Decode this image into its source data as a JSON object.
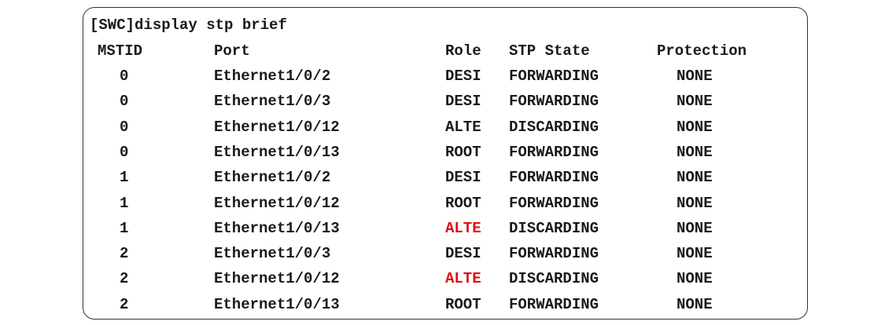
{
  "command": "[SWC]display stp brief",
  "headers": {
    "mstid": "MSTID",
    "port": "Port",
    "role": "Role",
    "state": "STP State",
    "protection": "Protection"
  },
  "colors": {
    "highlight": "#e01010",
    "text": "#1a1a1a"
  },
  "rows": [
    {
      "mstid": "0",
      "port": "Ethernet1/0/2",
      "role": "DESI",
      "state": "FORWARDING",
      "protection": "NONE",
      "highlight": false
    },
    {
      "mstid": "0",
      "port": "Ethernet1/0/3",
      "role": "DESI",
      "state": "FORWARDING",
      "protection": "NONE",
      "highlight": false
    },
    {
      "mstid": "0",
      "port": "Ethernet1/0/12",
      "role": "ALTE",
      "state": "DISCARDING",
      "protection": "NONE",
      "highlight": false
    },
    {
      "mstid": "0",
      "port": "Ethernet1/0/13",
      "role": "ROOT",
      "state": "FORWARDING",
      "protection": "NONE",
      "highlight": false
    },
    {
      "mstid": "1",
      "port": "Ethernet1/0/2",
      "role": "DESI",
      "state": "FORWARDING",
      "protection": "NONE",
      "highlight": false
    },
    {
      "mstid": "1",
      "port": "Ethernet1/0/12",
      "role": "ROOT",
      "state": "FORWARDING",
      "protection": "NONE",
      "highlight": false
    },
    {
      "mstid": "1",
      "port": "Ethernet1/0/13",
      "role": "ALTE",
      "state": "DISCARDING",
      "protection": "NONE",
      "highlight": true
    },
    {
      "mstid": "2",
      "port": "Ethernet1/0/3",
      "role": "DESI",
      "state": "FORWARDING",
      "protection": "NONE",
      "highlight": false
    },
    {
      "mstid": "2",
      "port": "Ethernet1/0/12",
      "role": "ALTE",
      "state": "DISCARDING",
      "protection": "NONE",
      "highlight": true
    },
    {
      "mstid": "2",
      "port": "Ethernet1/0/13",
      "role": "ROOT",
      "state": "FORWARDING",
      "protection": "NONE",
      "highlight": false
    }
  ]
}
